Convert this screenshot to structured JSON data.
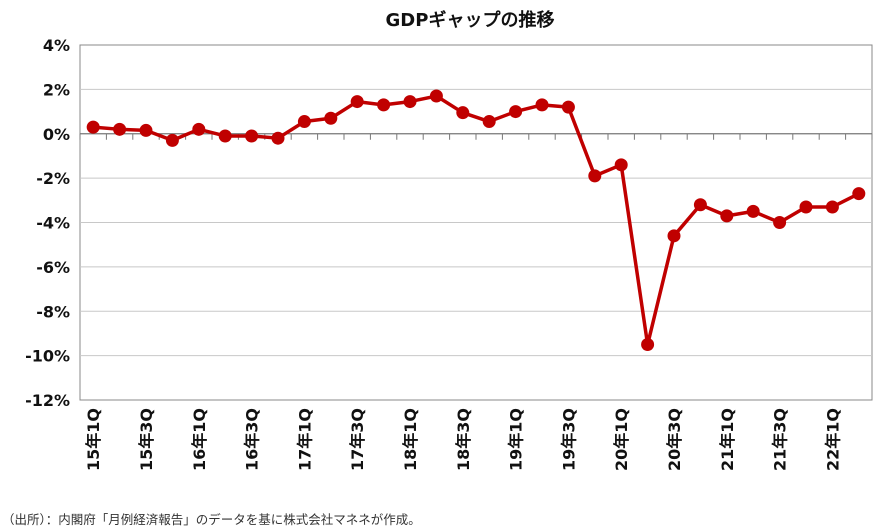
{
  "source_note": "（出所）：内閣府「月例経済報告」のデータを基に株式会社マネネが作成。",
  "chart_data": {
    "type": "line",
    "title": "GDPギャップの推移",
    "xlabel": "",
    "ylabel": "",
    "ylim": [
      -12,
      4
    ],
    "yticks": [
      4,
      2,
      0,
      -2,
      -4,
      -6,
      -8,
      -10,
      -12
    ],
    "ytick_labels": [
      "4%",
      "2%",
      "0%",
      "-2%",
      "-4%",
      "-6%",
      "-8%",
      "-10%",
      "-12%"
    ],
    "grid": true,
    "legend": "none",
    "categories": [
      "15年1Q",
      "15年2Q",
      "15年3Q",
      "15年4Q",
      "16年1Q",
      "16年2Q",
      "16年3Q",
      "16年4Q",
      "17年1Q",
      "17年2Q",
      "17年3Q",
      "17年4Q",
      "18年1Q",
      "18年2Q",
      "18年3Q",
      "18年4Q",
      "19年1Q",
      "19年2Q",
      "19年3Q",
      "19年4Q",
      "20年1Q",
      "20年2Q",
      "20年3Q",
      "20年4Q",
      "21年1Q",
      "21年2Q",
      "21年3Q",
      "21年4Q",
      "22年1Q",
      "22年2Q"
    ],
    "tick_labels_shown": [
      "15年1Q",
      "15年3Q",
      "16年1Q",
      "16年3Q",
      "17年1Q",
      "17年3Q",
      "18年1Q",
      "18年3Q",
      "19年1Q",
      "19年3Q",
      "20年1Q",
      "20年3Q",
      "21年1Q",
      "21年3Q",
      "22年1Q"
    ],
    "series": [
      {
        "color": "#c00000",
        "values": [
          0.3,
          0.2,
          0.15,
          -0.3,
          0.2,
          -0.1,
          -0.1,
          -0.2,
          0.55,
          0.7,
          1.45,
          1.3,
          1.45,
          1.7,
          0.95,
          0.55,
          1.0,
          1.3,
          1.2,
          -1.9,
          -1.4,
          -9.5,
          -4.6,
          -3.2,
          -3.7,
          -3.5,
          -4.0,
          -3.3,
          -3.3,
          -2.7
        ]
      }
    ]
  }
}
